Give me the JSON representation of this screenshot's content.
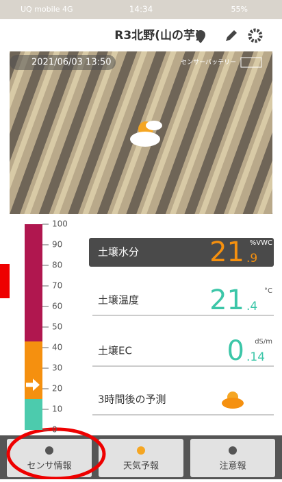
{
  "status_bar": {
    "carrier": "UQ mobile 4G",
    "time": "14:34",
    "battery": "55%"
  },
  "header": {
    "title": "R3北野(山の芋)"
  },
  "photo": {
    "timestamp": "2021/06/03 13:50",
    "battery_label": "センサーバッテリー"
  },
  "gauge": {
    "ylim": [
      0,
      100
    ],
    "yticks": [
      0,
      10,
      20,
      30,
      40,
      50,
      60,
      70,
      80,
      90,
      100
    ],
    "segments": [
      {
        "from": 0,
        "to": 15,
        "color": "#4ccbad"
      },
      {
        "from": 15,
        "to": 43,
        "color": "#f5900f"
      },
      {
        "from": 43,
        "to": 100,
        "color": "#b0174f"
      }
    ],
    "pointer": 21.9
  },
  "readings": [
    {
      "label": "土壌水分",
      "value": "21",
      "decimal": ".9",
      "unit": "%VWC",
      "color": "#f5900f"
    },
    {
      "label": "土壌温度",
      "value": "21",
      "decimal": ".4",
      "unit": "°C",
      "color": "#3cc6a8"
    },
    {
      "label": "土壌EC",
      "value": "0",
      "decimal": ".14",
      "unit": "dS/m",
      "color": "#3cc6a8"
    },
    {
      "label": "3時間後の予測"
    }
  ],
  "tabs": [
    "センサ情報",
    "天気予報",
    "注意報"
  ]
}
